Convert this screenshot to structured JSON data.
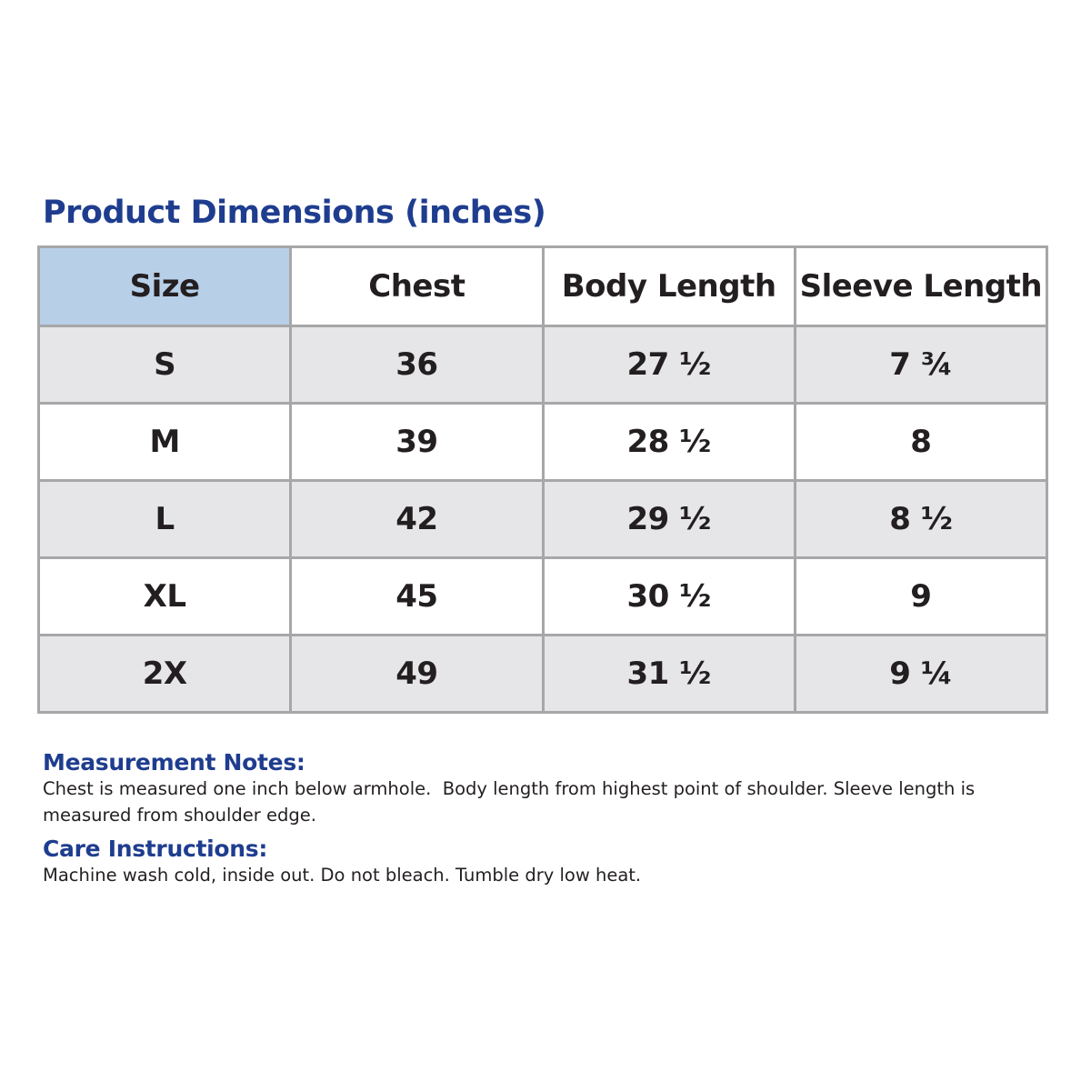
{
  "title": "Product Dimensions (inches)",
  "table": {
    "header": [
      "Size",
      "Chest",
      "Body Length",
      "Sleeve Length"
    ],
    "rows": [
      [
        "S",
        "36",
        "27 ½",
        "7 ¾"
      ],
      [
        "M",
        "39",
        "28 ½",
        "8"
      ],
      [
        "L",
        "42",
        "29 ½",
        "8 ½"
      ],
      [
        "XL",
        "45",
        "30 ½",
        "9"
      ],
      [
        "2X",
        "49",
        "31 ½",
        "9 ¼"
      ]
    ]
  },
  "notes": [
    {
      "heading": "Measurement Notes:",
      "text": "Chest is measured one inch below armhole.  Body length from highest point of shoulder. Sleeve length is measured from shoulder edge."
    },
    {
      "heading": "Care Instructions:",
      "text": "Machine wash cold, inside out. Do not bleach. Tumble dry low heat."
    }
  ]
}
